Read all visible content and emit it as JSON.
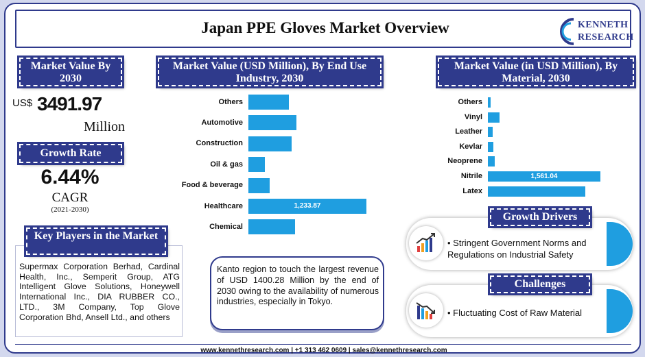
{
  "title": "Japan PPE Gloves Market Overview",
  "logo": {
    "line1": "KENNETH",
    "line2": "RESEARCH"
  },
  "market_value": {
    "heading": "Market Value By 2030",
    "prefix": "US$",
    "value": "3491.97",
    "unit": "Million"
  },
  "growth": {
    "heading": "Growth Rate",
    "value": "6.44%",
    "label": "CAGR",
    "period": "(2021-2030)"
  },
  "players": {
    "heading": "Key Players in the Market",
    "text": "Supermax Corporation Berhad, Cardinal Health, Inc., Semperit Group, ATG Intelligent Glove Solutions, Honeywell International Inc., DIA RUBBER CO., LTD., 3M Company, Top Glove Corporation Bhd, Ansell Ltd., and others"
  },
  "note": "Kanto region to touch the largest revenue of USD 1400.28 Million by the end of 2030 owing to the availability of numerous industries, especially in Tokyo.",
  "drivers": {
    "heading": "Growth Drivers",
    "items": [
      "Stringent Government Norms and Regulations on Industrial Safety"
    ]
  },
  "challenges": {
    "heading": "Challenges",
    "items": [
      "Fluctuating Cost of Raw Material"
    ]
  },
  "footer": "www.kennethresearch.com | +1 313 462 0609 | sales@kennethresearch.com",
  "colors": {
    "navy": "#2f3a8c",
    "bar": "#1f9ee0"
  },
  "chart_data": [
    {
      "type": "bar",
      "orientation": "horizontal",
      "title": "Market Value (USD Million), By End Use Industry, 2030",
      "categories": [
        "Others",
        "Automotive",
        "Construction",
        "Oil & gas",
        "Food & beverage",
        "Healthcare",
        "Chemical"
      ],
      "values": [
        420,
        500,
        450,
        170,
        225,
        1233.87,
        490
      ],
      "data_labels": [
        "",
        "",
        "",
        "",
        "",
        "1,233.87",
        ""
      ]
    },
    {
      "type": "bar",
      "orientation": "horizontal",
      "title": "Market Value (in USD Million), By Material, 2030",
      "categories": [
        "Others",
        "Vinyl",
        "Leather",
        "Kevlar",
        "Neoprene",
        "Nitrile",
        "Latex"
      ],
      "values": [
        40,
        160,
        65,
        75,
        95,
        1561.04,
        1350
      ],
      "data_labels": [
        "",
        "",
        "",
        "",
        "",
        "1,561.04",
        ""
      ]
    }
  ]
}
